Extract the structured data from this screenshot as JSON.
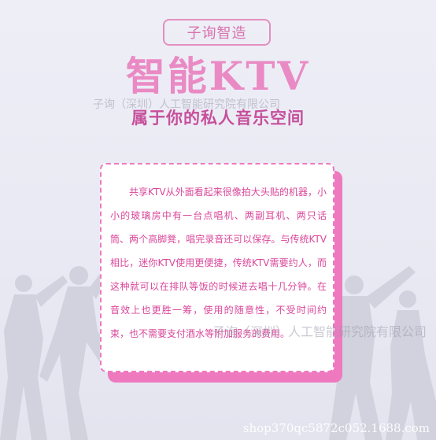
{
  "badge": {
    "text": "子询智造"
  },
  "title": {
    "text": "智能KTV"
  },
  "subtitle": {
    "text": "属于你的私人音乐空间"
  },
  "watermarks": {
    "top": "子询（深圳）人工智能研究院有限公司",
    "middle": "子询（深圳）人工智能研究院有限公司"
  },
  "card": {
    "body": "共享KTV从外面看起来很像拍大头贴的机器，小小的玻璃房中有一台点唱机、两副耳机、两只话筒、两个高脚凳，唱完录音还可以保存。与传统KTV相比，迷你KTV使用更便捷，传统KTV需要约人，而这种就可以在排队等饭的时候进去唱十几分钟。在音效上也更胜一筹，使用的随意性，不受时间约束，也不需要支付酒水等附加服务的费用。"
  },
  "footer": {
    "url": "shop370qc5872c052.1688.com"
  },
  "colors": {
    "accent": "#ee79bf",
    "title": "#ea8ac4",
    "subtitle": "#c6509b",
    "body_text": "#d9479a"
  }
}
